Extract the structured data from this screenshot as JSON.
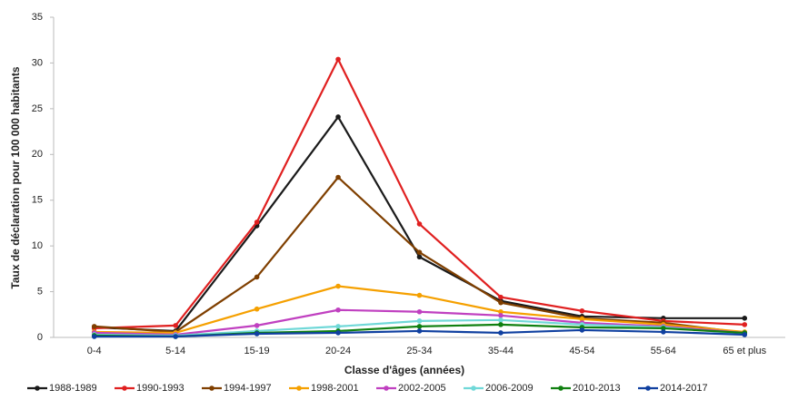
{
  "chart_data": {
    "type": "line",
    "x_label": "Classe d'âges (années)",
    "y_label": "Taux de déclaration pour 100 000 habitants",
    "categories": [
      "0-4",
      "5-14",
      "15-19",
      "20-24",
      "25-34",
      "35-44",
      "45-54",
      "55-64",
      "65 et plus"
    ],
    "ylim": [
      0,
      35
    ],
    "yticks": [
      0,
      5,
      10,
      15,
      20,
      25,
      30,
      35
    ],
    "grid": false,
    "legend": "bottom",
    "series": [
      {
        "name": "1988-1989",
        "color": "#1a1a1a",
        "values": [
          1.1,
          0.7,
          12.2,
          24.1,
          8.8,
          4.0,
          2.3,
          2.1,
          2.1
        ]
      },
      {
        "name": "1990-1993",
        "color": "#e02020",
        "values": [
          1.0,
          1.3,
          12.6,
          30.4,
          12.4,
          4.4,
          2.9,
          1.8,
          1.4
        ]
      },
      {
        "name": "1994-1997",
        "color": "#7f3f00",
        "values": [
          1.2,
          0.6,
          6.6,
          17.5,
          9.3,
          3.8,
          2.1,
          1.6,
          0.5
        ]
      },
      {
        "name": "1998-2001",
        "color": "#f5a000",
        "values": [
          0.6,
          0.5,
          3.1,
          5.6,
          4.6,
          2.8,
          2.0,
          1.4,
          0.6
        ]
      },
      {
        "name": "2002-2005",
        "color": "#c040c0",
        "values": [
          0.5,
          0.3,
          1.3,
          3.0,
          2.8,
          2.4,
          1.6,
          1.2,
          0.5
        ]
      },
      {
        "name": "2006-2009",
        "color": "#70d8d8",
        "values": [
          0.3,
          0.2,
          0.7,
          1.2,
          1.8,
          1.9,
          1.4,
          1.1,
          0.4
        ]
      },
      {
        "name": "2010-2013",
        "color": "#108010",
        "values": [
          0.2,
          0.1,
          0.5,
          0.7,
          1.2,
          1.4,
          1.1,
          1.0,
          0.5
        ]
      },
      {
        "name": "2014-2017",
        "color": "#1040a0",
        "values": [
          0.1,
          0.1,
          0.4,
          0.5,
          0.7,
          0.5,
          0.8,
          0.6,
          0.3
        ]
      }
    ]
  }
}
